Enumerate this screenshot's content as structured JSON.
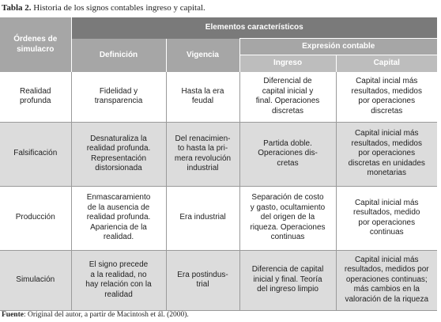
{
  "title": {
    "label": "Tabla 2.",
    "text": "Historia de los signos contables ingreso y capital."
  },
  "header": {
    "col1": [
      "Órdenes de",
      "simulacro"
    ],
    "group": "Elementos característicos",
    "definicion": "Definición",
    "vigencia": "Vigencia",
    "expresion": "Expresión contable",
    "ingreso": "Ingreso",
    "capital": "Capital"
  },
  "rows": [
    {
      "cells": [
        [
          "Realidad",
          "profunda"
        ],
        [
          "Fidelidad y",
          "transparencia"
        ],
        [
          "Hasta la era",
          "feudal"
        ],
        [
          "Diferencial de",
          "capital inicial y",
          "final. Operaciones",
          "discretas"
        ],
        [
          "Capital incial más",
          "resultados, medidos",
          "por operaciones",
          "discretas"
        ]
      ]
    },
    {
      "cells": [
        [
          "Falsificación"
        ],
        [
          "Desnaturaliza la",
          "realidad profunda.",
          "Representación",
          "distorsionada"
        ],
        [
          "Del renacimien-",
          "to hasta la pri-",
          "mera revolución",
          "industrial"
        ],
        [
          "Partida doble.",
          "Operaciones dis-",
          "cretas"
        ],
        [
          "Capital inicial más",
          "resultados, medidos",
          "por operaciones",
          "discretas en unidades",
          "monetarias"
        ]
      ]
    },
    {
      "cells": [
        [
          "Producción"
        ],
        [
          "Enmascaramiento",
          "de la ausencia de",
          "realidad profunda.",
          "Apariencia de la",
          "realidad."
        ],
        [
          "Era industrial"
        ],
        [
          "Separación de costo",
          "y gasto, ocultamiento",
          "del origen de la",
          "riqueza.  Operaciones",
          "continuas"
        ],
        [
          "Capital inicial más",
          "resultados, medido",
          "por operaciones",
          "continuas"
        ]
      ]
    },
    {
      "cells": [
        [
          "Simulación"
        ],
        [
          "El signo precede",
          "a la realidad, no",
          "hay relación con la",
          "realidad"
        ],
        [
          "Era postindus-",
          "trial"
        ],
        [
          "Diferencia de capital",
          "inicial y final. Teoría",
          "del ingreso limpio"
        ],
        [
          "Capital inicial más",
          "resultados, medidos por",
          "operaciones continuas;",
          "más cambios en la",
          "valoración de la riqueza"
        ]
      ]
    }
  ],
  "footer": {
    "label": "Fuente",
    "text": ": Original del autor, a partir de Macintosh et ál. (2000)."
  }
}
